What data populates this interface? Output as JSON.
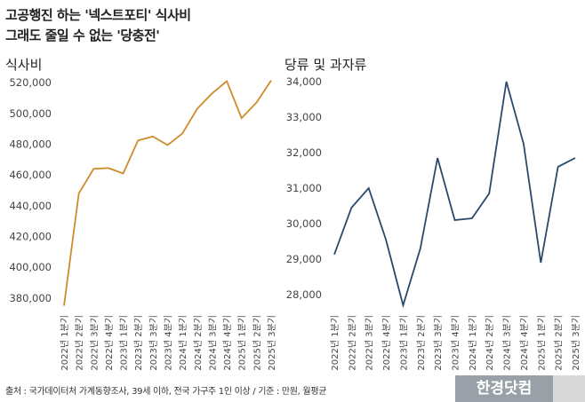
{
  "title_line1": "고공행진 하는 '넥스트포티' 식사비",
  "title_line2": "그래도 줄일 수 없는 '당충전'",
  "source": "출처 : 국가데이터처 가계동향조사, 39세 이하, 전국 가구주 1인 이상 / 기준 : 만원, 월평균",
  "logo": "한경닷컴",
  "chart_data": [
    {
      "type": "line",
      "title": "식사비",
      "color": "#d08a2a",
      "categories": [
        "2022년 1분기",
        "2022년 2분기",
        "2022년 3분기",
        "2022년 4분기",
        "2023년 1분기",
        "2023년 2분기",
        "2023년 3분기",
        "2023년 4분기",
        "2024년 1분기",
        "2024년 2분기",
        "2024년 3분기",
        "2024년 4분기",
        "2025년 1분기",
        "2025년 2분기",
        "2025년 3분기"
      ],
      "values": [
        375000,
        448000,
        464000,
        464500,
        461000,
        482500,
        485000,
        479500,
        487000,
        503000,
        513000,
        521000,
        497000,
        507000,
        521500
      ],
      "ylim": [
        373000,
        523000
      ],
      "yticks": [
        380000,
        400000,
        420000,
        440000,
        460000,
        480000,
        500000,
        520000
      ],
      "ytick_labels": [
        "380,000",
        "400,000",
        "420,000",
        "440,000",
        "460,000",
        "480,000",
        "500,000",
        "520,000"
      ],
      "grid": false
    },
    {
      "type": "line",
      "title": "당류 및 과자류",
      "color": "#2b4a6b",
      "categories": [
        "2022년 1분기",
        "2022년 2분기",
        "2022년 3분기",
        "2022년 4분기",
        "2023년 1분기",
        "2023년 2분기",
        "2023년 3분기",
        "2023년 4분기",
        "2024년 1분기",
        "2024년 2분기",
        "2024년 3분기",
        "2024년 4분기",
        "2025년 1분기",
        "2025년 2분기",
        "2025년 3분기"
      ],
      "values": [
        29130,
        30450,
        31000,
        29550,
        27700,
        29300,
        31850,
        30100,
        30150,
        30850,
        34000,
        32250,
        28900,
        31600,
        31850
      ],
      "ylim": [
        27600,
        34100
      ],
      "yticks": [
        28000,
        29000,
        30000,
        31000,
        32000,
        33000,
        34000
      ],
      "ytick_labels": [
        "28,000",
        "29,000",
        "30,000",
        "31,000",
        "32,000",
        "33,000",
        "34,000"
      ],
      "grid": false
    }
  ]
}
